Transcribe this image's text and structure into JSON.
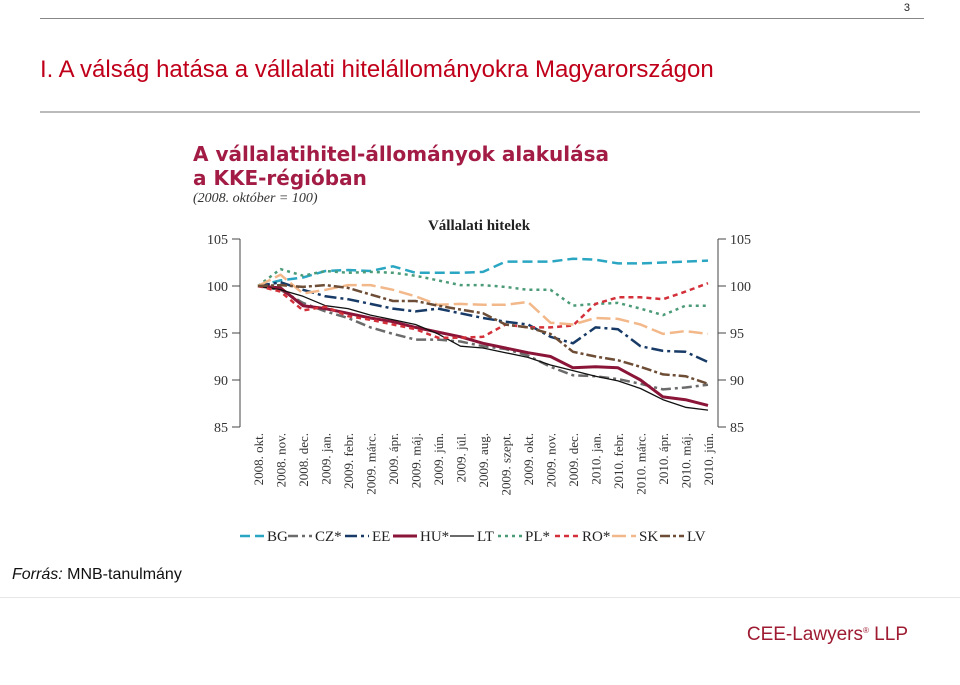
{
  "page_number": "3",
  "slide_title": "I.  A válság hatása a vállalati hitelállományokra Magyarországon",
  "source_label": "Forrás:",
  "source_text": " MNB-tanulmány",
  "brand": {
    "name": "CEE-Lawyers",
    "mark": "®",
    "suffix": " LLP"
  },
  "colors": {
    "title": "#c0001a",
    "chart_title": "#a31c45",
    "brand": "#9e1b32"
  },
  "chart_data": {
    "type": "line",
    "title": "A vállalatihitel-állományok alakulása",
    "title_line2": "a KKE-régióban",
    "subtitle": "(2008. október = 100)",
    "inner_title": "Vállalati hitelek",
    "x": [
      "2008. okt.",
      "2008. nov.",
      "2008. dec.",
      "2009. jan.",
      "2009. febr.",
      "2009. márc.",
      "2009. ápr.",
      "2009. máj.",
      "2009. jún.",
      "2009. júl.",
      "2009. aug.",
      "2009. szept.",
      "2009. okt.",
      "2009. nov.",
      "2009. dec.",
      "2010. jan.",
      "2010. febr.",
      "2010. márc.",
      "2010. ápr.",
      "2010. máj.",
      "2010. jún."
    ],
    "ylim": [
      85,
      105
    ],
    "yticks": [
      "85",
      "90",
      "95",
      "100",
      "105"
    ],
    "grid": false,
    "legend_position": "bottom",
    "series": [
      {
        "name": "BG",
        "color": "#2aa6c2",
        "dash": "10,5",
        "width": 2.5,
        "values": [
          100,
          100.6,
          100.9,
          101.6,
          101.7,
          101.6,
          102.1,
          101.4,
          101.4,
          101.4,
          101.5,
          102.6,
          102.6,
          102.6,
          102.9,
          102.8,
          102.4,
          102.4,
          102.5,
          102.6,
          102.7
        ]
      },
      {
        "name": "CZ*",
        "color": "#6b6b6b",
        "dash": "10,4,3,4",
        "width": 2.5,
        "values": [
          100,
          99.6,
          98.2,
          97.3,
          96.6,
          95.6,
          94.9,
          94.3,
          94.3,
          94.1,
          93.6,
          93.3,
          92.6,
          91.4,
          90.5,
          90.4,
          90.1,
          89.6,
          89.0,
          89.2,
          89.5
        ]
      },
      {
        "name": "EE",
        "color": "#173a66",
        "dash": "12,4,3,4",
        "width": 2.5,
        "values": [
          100,
          100.4,
          99.6,
          98.9,
          98.6,
          98.1,
          97.6,
          97.3,
          97.6,
          97.1,
          96.6,
          96.2,
          95.9,
          94.6,
          93.9,
          95.6,
          95.4,
          93.6,
          93.1,
          93.0,
          91.9
        ]
      },
      {
        "name": "HU*",
        "color": "#8a1538",
        "dash": "",
        "width": 3,
        "values": [
          100,
          99.8,
          97.9,
          97.6,
          97.1,
          96.6,
          96.2,
          95.6,
          95.1,
          94.6,
          93.9,
          93.4,
          92.9,
          92.5,
          91.3,
          91.4,
          91.3,
          90.0,
          88.2,
          87.9,
          87.3
        ]
      },
      {
        "name": "LT",
        "color": "#111111",
        "dash": "",
        "width": 1.3,
        "values": [
          100,
          99.6,
          98.9,
          97.9,
          97.6,
          96.9,
          96.4,
          95.9,
          94.9,
          93.6,
          93.4,
          92.9,
          92.4,
          91.6,
          91.0,
          90.4,
          89.9,
          89.1,
          87.9,
          87.1,
          86.8
        ]
      },
      {
        "name": "PL*",
        "color": "#4b9b78",
        "dash": "3,4",
        "width": 2.5,
        "values": [
          100,
          101.8,
          101.1,
          101.6,
          101.4,
          101.5,
          101.4,
          101.1,
          100.6,
          100.1,
          100.1,
          99.9,
          99.6,
          99.6,
          97.9,
          98.1,
          98.2,
          97.6,
          96.9,
          97.9,
          97.9
        ]
      },
      {
        "name": "RO*",
        "color": "#d3303a",
        "dash": "5,4",
        "width": 2.5,
        "values": [
          100,
          99.4,
          97.4,
          97.8,
          96.8,
          96.4,
          95.9,
          95.4,
          94.5,
          94.5,
          94.6,
          95.9,
          95.6,
          95.6,
          95.8,
          98.1,
          98.8,
          98.8,
          98.6,
          99.4,
          100.3
        ]
      },
      {
        "name": "SK",
        "color": "#f2b88a",
        "dash": "14,5",
        "width": 2.5,
        "values": [
          100,
          101.2,
          99.2,
          99.6,
          100.1,
          100.1,
          99.6,
          98.9,
          98.0,
          98.1,
          98.0,
          98.0,
          98.3,
          96.1,
          95.9,
          96.6,
          96.5,
          95.9,
          94.9,
          95.2,
          94.9
        ]
      },
      {
        "name": "LV",
        "color": "#6d4d35",
        "dash": "10,3,3,3",
        "width": 2.5,
        "values": [
          100,
          100.1,
          99.9,
          100.1,
          99.8,
          99.1,
          98.4,
          98.4,
          97.9,
          97.5,
          97.1,
          95.9,
          95.6,
          94.9,
          93.0,
          92.5,
          92.1,
          91.4,
          90.6,
          90.4,
          89.6
        ]
      }
    ]
  }
}
